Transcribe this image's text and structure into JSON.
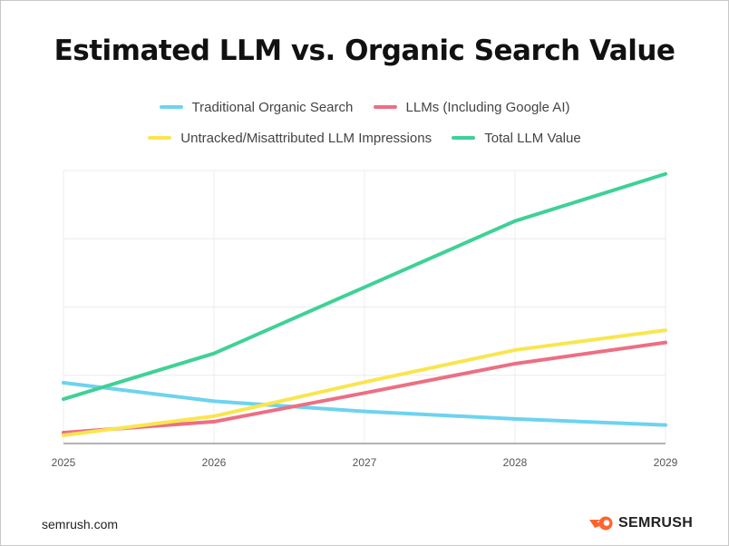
{
  "chart_data": {
    "type": "line",
    "title": "Estimated LLM vs. Organic Search Value",
    "x": [
      "2025",
      "2026",
      "2027",
      "2028",
      "2029"
    ],
    "ylim": [
      0,
      4
    ],
    "grid": true,
    "legend_position": "top",
    "series": [
      {
        "name": "Traditional Organic Search",
        "color": "#6dd3ef",
        "values": [
          0.89,
          0.62,
          0.47,
          0.36,
          0.27
        ]
      },
      {
        "name": "LLMs (Including Google AI)",
        "color": "#ec6f84",
        "values": [
          0.16,
          0.32,
          0.74,
          1.17,
          1.48
        ]
      },
      {
        "name": "Untracked/Misattributed LLM Impressions",
        "color": "#f9e64f",
        "values": [
          0.12,
          0.4,
          0.9,
          1.37,
          1.66
        ]
      },
      {
        "name": "Total LLM Value",
        "color": "#3fd196",
        "values": [
          0.65,
          1.32,
          2.29,
          3.26,
          3.95
        ]
      }
    ]
  },
  "footer": {
    "source": "semrush.com",
    "logo_text": "SEMRUSH",
    "logo_icon": "semrush-fireball-icon",
    "logo_color": "#ff642d"
  }
}
